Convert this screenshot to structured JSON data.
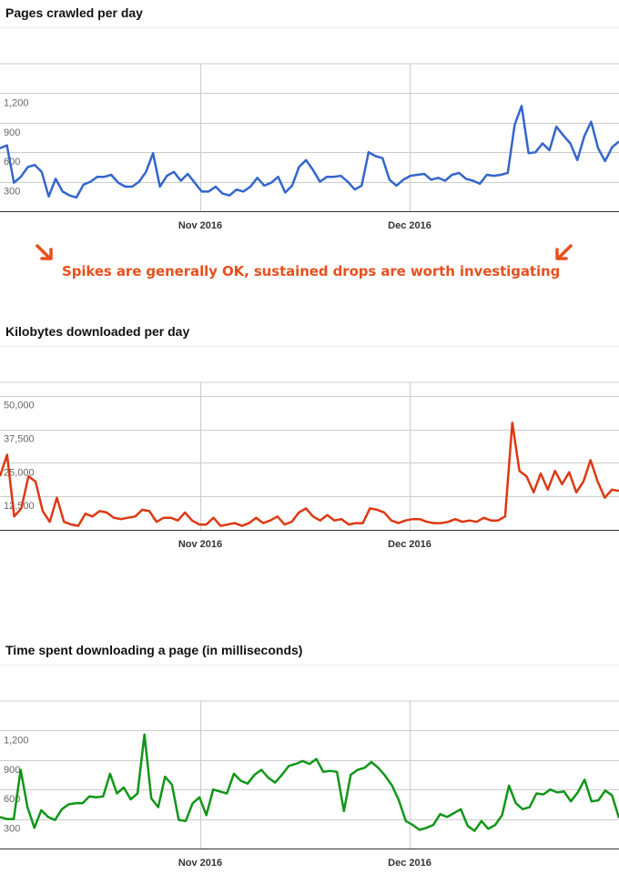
{
  "annotation": {
    "text": "Spikes are generally OK, sustained drops are worth investigating",
    "color": "#e8501e"
  },
  "chart_data": [
    {
      "type": "line",
      "title": "Pages crawled per day",
      "color": "#3366cc",
      "ylim": [
        0,
        1500
      ],
      "yticks": [
        300,
        600,
        900,
        1200
      ],
      "ytick_labels": [
        "300",
        "600",
        "900",
        "1,200"
      ],
      "xtick_labels": [
        "Nov 2016",
        "Dec 2016"
      ],
      "values": [
        640,
        670,
        290,
        350,
        450,
        470,
        400,
        150,
        330,
        200,
        160,
        140,
        270,
        300,
        350,
        350,
        370,
        290,
        250,
        250,
        300,
        400,
        590,
        250,
        360,
        400,
        310,
        380,
        290,
        200,
        200,
        250,
        180,
        160,
        220,
        200,
        250,
        340,
        260,
        290,
        350,
        190,
        260,
        450,
        520,
        420,
        300,
        350,
        350,
        360,
        300,
        220,
        260,
        600,
        560,
        540,
        320,
        260,
        320,
        360,
        370,
        380,
        320,
        340,
        310,
        370,
        390,
        330,
        310,
        280,
        370,
        360,
        370,
        390,
        880,
        1070,
        590,
        600,
        690,
        620,
        860,
        770,
        690,
        520,
        760,
        910,
        640,
        510,
        650,
        710
      ]
    },
    {
      "type": "line",
      "title": "Kilobytes downloaded per day",
      "color": "#dc3912",
      "ylim": [
        0,
        55000
      ],
      "yticks": [
        12500,
        25000,
        37500,
        50000
      ],
      "ytick_labels": [
        "12,500",
        "25,000",
        "37,500",
        "50,000"
      ],
      "xtick_labels": [
        "Nov 2016",
        "Dec 2016"
      ],
      "values": [
        20000,
        28000,
        5000,
        8000,
        20000,
        18000,
        7000,
        3000,
        12000,
        3000,
        2000,
        1500,
        6000,
        5000,
        7000,
        6500,
        4500,
        4000,
        4500,
        5000,
        7500,
        7000,
        3000,
        4500,
        4500,
        3500,
        6500,
        3500,
        2000,
        2000,
        4500,
        1500,
        2000,
        2500,
        1500,
        2500,
        4500,
        2500,
        3500,
        5000,
        2000,
        3000,
        6500,
        8000,
        5000,
        3500,
        5500,
        3500,
        4000,
        2000,
        2500,
        2500,
        8000,
        7500,
        6500,
        3500,
        2500,
        3500,
        4000,
        4000,
        3000,
        2500,
        2500,
        3000,
        4000,
        3000,
        3500,
        3000,
        4500,
        3500,
        3500,
        5000,
        40000,
        22000,
        20000,
        14000,
        21000,
        15000,
        22000,
        17000,
        21500,
        14000,
        18000,
        26000,
        18000,
        12000,
        15000,
        14500
      ]
    },
    {
      "type": "line",
      "title": "Time spent downloading a page (in milliseconds)",
      "color": "#109618",
      "ylim": [
        0,
        1500
      ],
      "yticks": [
        300,
        600,
        900,
        1200
      ],
      "ytick_labels": [
        "300",
        "600",
        "900",
        "1,200"
      ],
      "xtick_labels": [
        "Nov 2016",
        "Dec 2016"
      ],
      "values": [
        320,
        300,
        300,
        800,
        420,
        210,
        390,
        320,
        290,
        400,
        450,
        460,
        460,
        530,
        520,
        530,
        760,
        560,
        620,
        500,
        560,
        1160,
        510,
        420,
        730,
        650,
        290,
        280,
        460,
        520,
        340,
        600,
        580,
        560,
        760,
        690,
        660,
        750,
        800,
        720,
        670,
        750,
        840,
        860,
        890,
        860,
        910,
        780,
        790,
        780,
        380,
        750,
        800,
        820,
        880,
        820,
        740,
        640,
        490,
        280,
        240,
        190,
        210,
        240,
        350,
        320,
        360,
        400,
        230,
        180,
        280,
        200,
        240,
        340,
        640,
        460,
        400,
        420,
        560,
        550,
        600,
        570,
        580,
        480,
        570,
        700,
        480,
        490,
        590,
        540,
        310
      ]
    }
  ]
}
